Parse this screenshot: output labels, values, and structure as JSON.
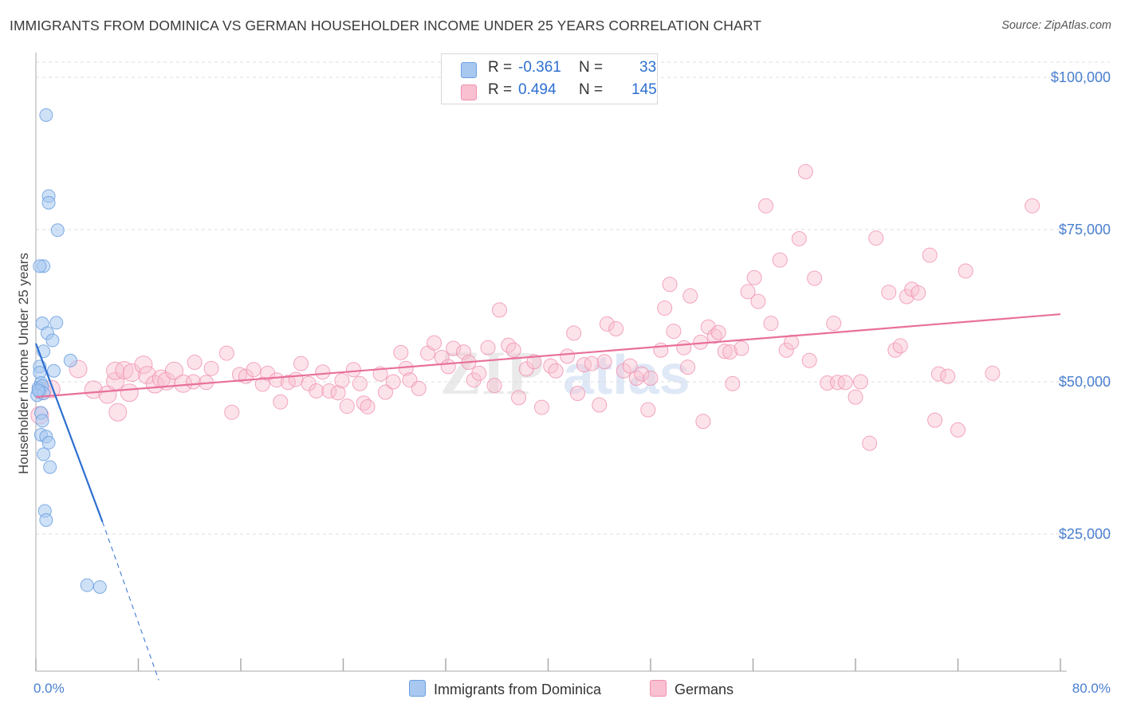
{
  "header": {
    "title": "IMMIGRANTS FROM DOMINICA VS GERMAN HOUSEHOLDER INCOME UNDER 25 YEARS CORRELATION CHART",
    "source": "Source: ZipAtlas.com"
  },
  "legend": {
    "r_label": "R =",
    "n_label": "N =",
    "rows": [
      {
        "r": "-0.361",
        "n": "33",
        "color": "#a8c8f0",
        "border": "#6a9fe0"
      },
      {
        "r": "0.494",
        "n": "145",
        "color": "#f8c0d0",
        "border": "#f090b0"
      }
    ]
  },
  "bottom_legend": [
    {
      "label": "Immigrants from Dominica",
      "color": "#a8c8f0",
      "border": "#6a9fe0"
    },
    {
      "label": "Germans",
      "color": "#f8c0d0",
      "border": "#f090b0"
    }
  ],
  "watermark": {
    "zip": "ZIP",
    "atlas": "atlas"
  },
  "chart_data": {
    "type": "scatter",
    "ylabel": "Householder Income Under 25 years",
    "x_tick_labels": {
      "min": "0.0%",
      "max": "80.0%"
    },
    "y_tick_labels": [
      "$25,000",
      "$50,000",
      "$75,000",
      "$100,000"
    ],
    "y_ticks": [
      25000,
      50000,
      75000,
      100000
    ],
    "xlim": [
      0,
      80
    ],
    "ylim": [
      0,
      102000
    ],
    "grid": true,
    "colors": {
      "dominica": "#6a9fe0",
      "dominica_fill": "#a8c8f0",
      "germans": "#f090b0",
      "germans_fill": "#f8c0d0",
      "dominica_line": "#2e6fd0",
      "germans_line": "#e8709a"
    },
    "series": [
      {
        "name": "Immigrants from Dominica",
        "points": [
          [
            0.8,
            93800
          ],
          [
            1.0,
            80500
          ],
          [
            1.0,
            79400
          ],
          [
            1.7,
            74900
          ],
          [
            0.6,
            69000
          ],
          [
            0.3,
            69000
          ],
          [
            0.5,
            59600
          ],
          [
            1.6,
            59700
          ],
          [
            0.9,
            58000
          ],
          [
            1.3,
            56800
          ],
          [
            0.6,
            55000
          ],
          [
            2.7,
            53500
          ],
          [
            0.3,
            52500
          ],
          [
            0.3,
            51500
          ],
          [
            1.4,
            51800
          ],
          [
            0.4,
            49800
          ],
          [
            0.2,
            49000
          ],
          [
            0.5,
            49300
          ],
          [
            0.3,
            48300
          ],
          [
            0.1,
            47800
          ],
          [
            0.6,
            48100
          ],
          [
            0.4,
            44900
          ],
          [
            0.5,
            43600
          ],
          [
            0.4,
            41300
          ],
          [
            0.8,
            41000
          ],
          [
            1.0,
            40000
          ],
          [
            0.6,
            38100
          ],
          [
            1.1,
            36000
          ],
          [
            0.7,
            28800
          ],
          [
            0.8,
            27300
          ],
          [
            4.0,
            16600
          ],
          [
            5.0,
            16300
          ],
          [
            0.2,
            48600
          ]
        ],
        "trend": {
          "x": [
            0,
            5.2
          ],
          "y": [
            56300,
            27000
          ],
          "dashed_to": {
            "x": 9.6,
            "y": 1000
          }
        }
      },
      {
        "name": "Germans",
        "points": [
          [
            0.3,
            44500
          ],
          [
            0.5,
            48500
          ],
          [
            1.2,
            48800
          ],
          [
            3.3,
            52100
          ],
          [
            4.5,
            48700
          ],
          [
            5.6,
            47900
          ],
          [
            6.2,
            50100
          ],
          [
            6.2,
            51800
          ],
          [
            6.4,
            45000
          ],
          [
            6.9,
            51900
          ],
          [
            7.5,
            51500
          ],
          [
            7.3,
            48200
          ],
          [
            8.4,
            52800
          ],
          [
            8.7,
            51100
          ],
          [
            9.3,
            49600
          ],
          [
            9.8,
            50500
          ],
          [
            10.2,
            50100
          ],
          [
            10.8,
            51800
          ],
          [
            11.5,
            49700
          ],
          [
            12.3,
            50000
          ],
          [
            12.4,
            53200
          ],
          [
            13.3,
            49900
          ],
          [
            13.7,
            52200
          ],
          [
            14.9,
            54700
          ],
          [
            15.3,
            45000
          ],
          [
            15.9,
            51200
          ],
          [
            16.4,
            50900
          ],
          [
            17.0,
            52000
          ],
          [
            17.7,
            49600
          ],
          [
            18.1,
            51400
          ],
          [
            18.8,
            50300
          ],
          [
            19.1,
            46700
          ],
          [
            19.7,
            49900
          ],
          [
            20.3,
            50400
          ],
          [
            20.7,
            53000
          ],
          [
            21.3,
            49700
          ],
          [
            21.9,
            48500
          ],
          [
            22.4,
            51600
          ],
          [
            22.9,
            48500
          ],
          [
            23.6,
            48200
          ],
          [
            23.9,
            50200
          ],
          [
            24.3,
            46000
          ],
          [
            24.8,
            52000
          ],
          [
            25.3,
            49700
          ],
          [
            25.6,
            46500
          ],
          [
            25.9,
            45900
          ],
          [
            26.9,
            51300
          ],
          [
            27.3,
            48300
          ],
          [
            27.9,
            50000
          ],
          [
            28.5,
            54800
          ],
          [
            28.9,
            52200
          ],
          [
            29.2,
            50300
          ],
          [
            29.9,
            48900
          ],
          [
            30.6,
            54700
          ],
          [
            31.1,
            56400
          ],
          [
            31.7,
            54000
          ],
          [
            32.2,
            52500
          ],
          [
            32.6,
            55500
          ],
          [
            33.4,
            54900
          ],
          [
            33.8,
            53200
          ],
          [
            34.2,
            50300
          ],
          [
            34.6,
            51400
          ],
          [
            35.3,
            55600
          ],
          [
            35.8,
            49400
          ],
          [
            36.2,
            61800
          ],
          [
            36.9,
            56000
          ],
          [
            37.3,
            55200
          ],
          [
            37.7,
            47400
          ],
          [
            38.3,
            52100
          ],
          [
            38.9,
            53300
          ],
          [
            39.5,
            45800
          ],
          [
            40.2,
            52600
          ],
          [
            40.6,
            51800
          ],
          [
            41.5,
            54200
          ],
          [
            42.0,
            58000
          ],
          [
            42.3,
            48100
          ],
          [
            42.8,
            52800
          ],
          [
            43.4,
            53000
          ],
          [
            44.0,
            46200
          ],
          [
            44.4,
            53300
          ],
          [
            44.6,
            59500
          ],
          [
            45.3,
            58700
          ],
          [
            45.9,
            51800
          ],
          [
            46.4,
            52600
          ],
          [
            46.9,
            50600
          ],
          [
            47.3,
            51300
          ],
          [
            47.8,
            45400
          ],
          [
            48.0,
            50600
          ],
          [
            48.8,
            55200
          ],
          [
            49.1,
            62100
          ],
          [
            49.5,
            66000
          ],
          [
            49.8,
            58300
          ],
          [
            50.6,
            55600
          ],
          [
            50.9,
            52400
          ],
          [
            51.1,
            64100
          ],
          [
            51.9,
            56500
          ],
          [
            52.1,
            43500
          ],
          [
            52.5,
            59000
          ],
          [
            53.0,
            57500
          ],
          [
            53.3,
            58100
          ],
          [
            53.8,
            55000
          ],
          [
            54.2,
            54900
          ],
          [
            54.4,
            49700
          ],
          [
            55.1,
            55500
          ],
          [
            55.6,
            64800
          ],
          [
            56.1,
            67100
          ],
          [
            56.4,
            63200
          ],
          [
            57.0,
            78900
          ],
          [
            57.4,
            59600
          ],
          [
            58.1,
            70000
          ],
          [
            58.6,
            55200
          ],
          [
            59.0,
            56500
          ],
          [
            59.6,
            73500
          ],
          [
            60.4,
            53500
          ],
          [
            60.8,
            67000
          ],
          [
            61.8,
            49800
          ],
          [
            62.3,
            59600
          ],
          [
            62.6,
            49900
          ],
          [
            63.2,
            49900
          ],
          [
            64.0,
            47500
          ],
          [
            64.4,
            50000
          ],
          [
            65.1,
            39900
          ],
          [
            65.6,
            73600
          ],
          [
            66.6,
            64700
          ],
          [
            67.1,
            55200
          ],
          [
            67.5,
            55900
          ],
          [
            68.0,
            64000
          ],
          [
            68.4,
            65200
          ],
          [
            68.9,
            64600
          ],
          [
            69.8,
            70800
          ],
          [
            70.2,
            43700
          ],
          [
            70.5,
            51300
          ],
          [
            71.2,
            50900
          ],
          [
            72.0,
            42100
          ],
          [
            72.6,
            68200
          ],
          [
            74.7,
            51400
          ],
          [
            77.8,
            78900
          ],
          [
            60.1,
            84500
          ]
        ],
        "trend": {
          "x": [
            0,
            80
          ],
          "y": [
            47500,
            61100
          ]
        }
      }
    ]
  }
}
